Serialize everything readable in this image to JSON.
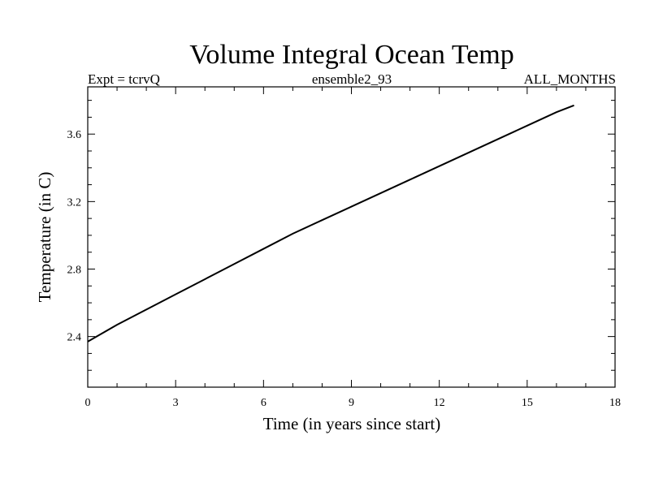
{
  "chart_data": {
    "type": "line",
    "title": "Volume Integral Ocean Temp",
    "subtitle_left": "Expt = tcrvQ",
    "subtitle_center": "ensemble2_93",
    "subtitle_right": "ALL_MONTHS",
    "xlabel": "Time (in years since start)",
    "ylabel": "Temperature (in C)",
    "xlim": [
      0,
      18
    ],
    "ylim": [
      2.1,
      3.88
    ],
    "xticks": [
      0,
      3,
      6,
      9,
      12,
      15,
      18
    ],
    "xtick_labels": [
      "0",
      "3",
      "6",
      "9",
      "12",
      "15",
      "18"
    ],
    "yticks": [
      2.4,
      2.8,
      3.2,
      3.6
    ],
    "ytick_labels": [
      "2.4",
      "2.8",
      "3.2",
      "3.6"
    ],
    "grid": false,
    "series": [
      {
        "name": "Volume Integral Ocean Temp",
        "x": [
          0,
          0.5,
          1,
          2,
          3,
          4,
          5,
          6,
          7,
          8,
          9,
          10,
          11,
          12,
          13,
          14,
          15,
          16,
          16.6
        ],
        "y": [
          2.37,
          2.42,
          2.47,
          2.56,
          2.65,
          2.74,
          2.83,
          2.92,
          3.01,
          3.09,
          3.17,
          3.25,
          3.33,
          3.41,
          3.49,
          3.57,
          3.65,
          3.73,
          3.77
        ]
      }
    ]
  }
}
